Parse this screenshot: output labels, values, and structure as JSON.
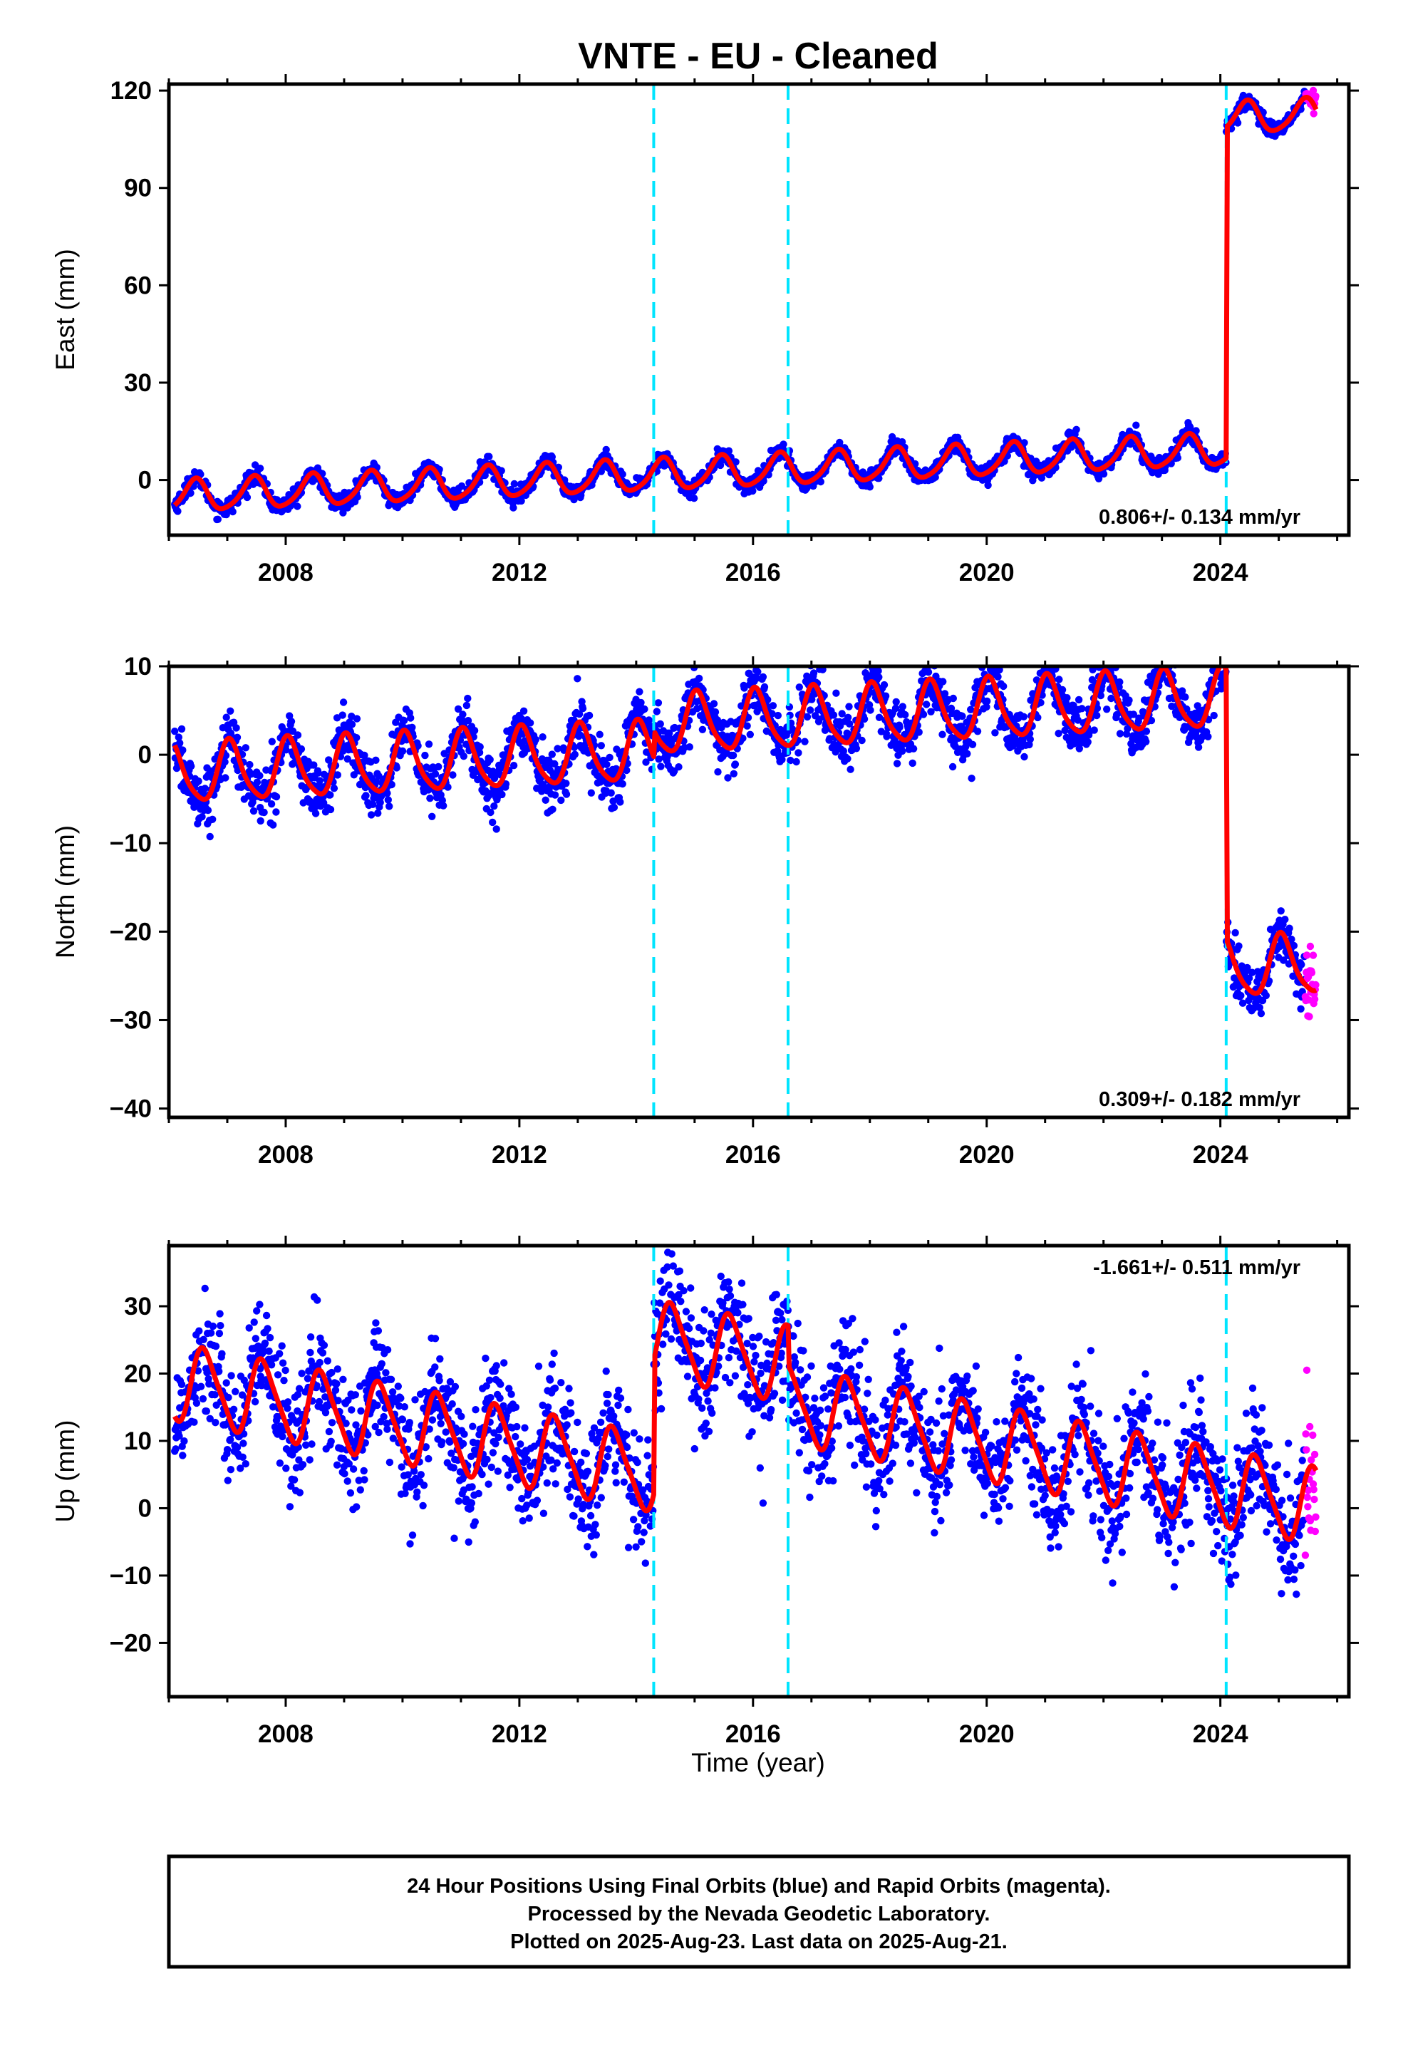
{
  "title": "VNTE  - EU - Cleaned",
  "xlabel": "Time (year)",
  "footer": {
    "line1": "24 Hour Positions Using Final Orbits (blue) and Rapid Orbits (magenta).",
    "line2": "Processed by the Nevada Geodetic Laboratory.",
    "line3": "Plotted on 2025-Aug-23. Last data on 2025-Aug-21."
  },
  "colors": {
    "final_orbits": "#0000ff",
    "rapid_orbits": "#ff00ff",
    "model": "#ff0000",
    "event_lines": "#00e5ff"
  },
  "chart_data": [
    {
      "type": "scatter",
      "name": "east",
      "ylabel": "East (mm)",
      "xlim": [
        2006.0,
        2026.2
      ],
      "ylim": [
        -17,
        122
      ],
      "xticks": [
        2008,
        2012,
        2016,
        2020,
        2024
      ],
      "yticks": [
        0,
        30,
        60,
        90,
        120
      ],
      "rate_label": "0.806+/- 0.134 mm/yr",
      "rate_position": "bottom-right",
      "event_lines": [
        2014.3,
        2016.6,
        2024.1
      ],
      "data_span": [
        2006.1,
        2025.64
      ],
      "rapid_span": [
        2025.45,
        2025.64
      ],
      "model": {
        "offset": 2.0,
        "rate": 0.806,
        "ref_year": 2015.0,
        "annual_amp": 4.8,
        "annual_peak": 0.45,
        "semiannual_amp": 0.8,
        "noise_sd": 1.3,
        "steps": [
          {
            "year": 2024.1,
            "size": 102
          }
        ]
      }
    },
    {
      "type": "scatter",
      "name": "north",
      "ylabel": "North (mm)",
      "xlim": [
        2006.0,
        2026.2
      ],
      "ylim": [
        -41,
        10
      ],
      "xticks": [
        2008,
        2012,
        2016,
        2020,
        2024
      ],
      "yticks": [
        -40,
        -30,
        -20,
        -10,
        0,
        10
      ],
      "rate_label": "0.309+/- 0.182 mm/yr",
      "rate_position": "bottom-right",
      "event_lines": [
        2014.3,
        2016.6,
        2024.1
      ],
      "data_span": [
        2006.1,
        2025.64
      ],
      "rapid_span": [
        2025.45,
        2025.64
      ],
      "model": {
        "offset": 0.5,
        "rate": 0.309,
        "ref_year": 2015.0,
        "annual_amp": 3.3,
        "annual_peak": 0.05,
        "semiannual_amp": 0.6,
        "noise_sd": 1.6,
        "steps": [
          {
            "year": 2014.3,
            "size": 3.0
          },
          {
            "year": 2024.1,
            "size": -30.5
          }
        ]
      }
    },
    {
      "type": "scatter",
      "name": "up",
      "ylabel": "Up (mm)",
      "xlim": [
        2006.0,
        2026.2
      ],
      "ylim": [
        -28,
        39
      ],
      "xticks": [
        2008,
        2012,
        2016,
        2020,
        2024
      ],
      "yticks": [
        -20,
        -10,
        0,
        10,
        20,
        30
      ],
      "rate_label": "-1.661+/- 0.511 mm/yr",
      "rate_position": "top-right",
      "event_lines": [
        2014.3,
        2016.6,
        2024.1
      ],
      "data_span": [
        2006.1,
        2025.64
      ],
      "rapid_span": [
        2025.45,
        2025.64
      ],
      "model": {
        "offset": 4.0,
        "rate": -1.661,
        "ref_year": 2015.0,
        "annual_amp": 5.5,
        "annual_peak": 0.62,
        "semiannual_amp": 1.0,
        "noise_sd": 4.5,
        "steps": [
          {
            "year": 2014.3,
            "size": 20.0
          },
          {
            "year": 2016.6,
            "size": -6.0
          }
        ]
      }
    }
  ]
}
